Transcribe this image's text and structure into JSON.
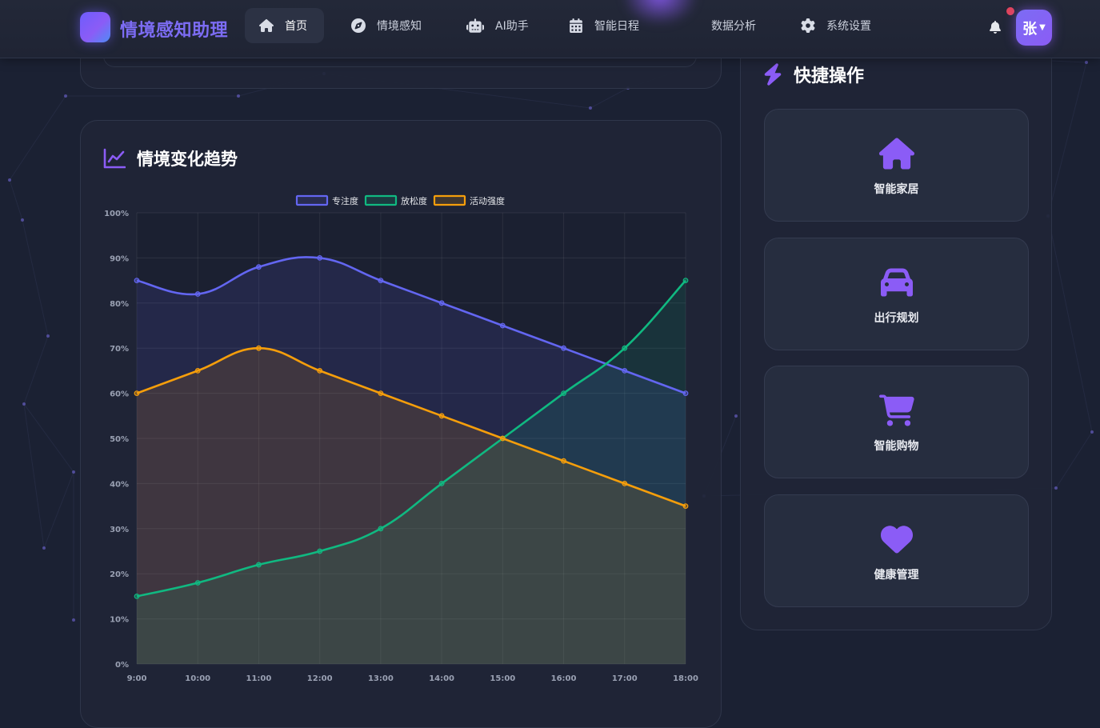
{
  "app": {
    "brand": "情境感知助理",
    "user_initial": "张"
  },
  "nav": {
    "items": [
      {
        "label": "首页",
        "icon": "home-icon",
        "active": true
      },
      {
        "label": "情境感知",
        "icon": "compass-icon",
        "active": false
      },
      {
        "label": "AI助手",
        "icon": "robot-icon",
        "active": false
      },
      {
        "label": "智能日程",
        "icon": "calendar-icon",
        "active": false
      },
      {
        "label": "数据分析",
        "icon": "chart-icon",
        "active": false
      },
      {
        "label": "系统设置",
        "icon": "gear-icon",
        "active": false
      }
    ]
  },
  "trend_card": {
    "title": "情境变化趋势"
  },
  "quick_actions": {
    "title": "快捷操作",
    "items": [
      {
        "label": "智能家居",
        "icon": "home-icon"
      },
      {
        "label": "出行规划",
        "icon": "car-icon"
      },
      {
        "label": "智能购物",
        "icon": "shopping-cart-icon"
      },
      {
        "label": "健康管理",
        "icon": "heart-icon"
      }
    ]
  },
  "colors": {
    "accent": "#8b5cf6",
    "focus": "#6366f1",
    "relax": "#10b981",
    "activity": "#f59e0b",
    "background": "#1b2133"
  },
  "chart_data": {
    "type": "line",
    "categories": [
      "9:00",
      "10:00",
      "11:00",
      "12:00",
      "13:00",
      "14:00",
      "15:00",
      "16:00",
      "17:00",
      "18:00"
    ],
    "series": [
      {
        "name": "专注度",
        "color": "#6366f1",
        "values": [
          85,
          82,
          88,
          90,
          85,
          80,
          75,
          70,
          65,
          60
        ]
      },
      {
        "name": "放松度",
        "color": "#10b981",
        "values": [
          15,
          18,
          22,
          25,
          30,
          40,
          50,
          60,
          70,
          85
        ]
      },
      {
        "name": "活动强度",
        "color": "#f59e0b",
        "values": [
          60,
          65,
          70,
          65,
          60,
          55,
          50,
          45,
          40,
          35
        ]
      }
    ],
    "y_ticks": [
      "0%",
      "10%",
      "20%",
      "30%",
      "40%",
      "50%",
      "60%",
      "70%",
      "80%",
      "90%",
      "100%"
    ],
    "ylim": [
      0,
      100
    ],
    "area_fill": true,
    "grid": true,
    "legend_position": "top"
  }
}
